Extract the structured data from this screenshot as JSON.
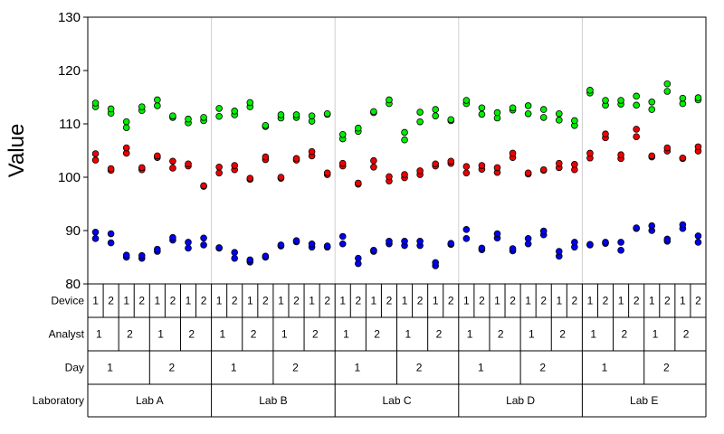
{
  "chart_data": {
    "type": "scatter",
    "title": "",
    "xlabel": "",
    "ylabel": "Value",
    "ylim": [
      80,
      130
    ],
    "yticks": [
      80,
      90,
      100,
      110,
      120,
      130
    ],
    "grid": "vertical lines between laboratories",
    "hierarchy": {
      "row_labels": [
        "Device",
        "Analyst",
        "Day",
        "Laboratory"
      ],
      "laboratories": [
        "Lab A",
        "Lab B",
        "Lab C",
        "Lab D",
        "Lab E"
      ],
      "days": [
        "1",
        "2"
      ],
      "analysts": [
        "1",
        "2"
      ],
      "devices": [
        "1",
        "2"
      ]
    },
    "colors": {
      "low": "#0000ee",
      "mid": "#ee0000",
      "high": "#00ee00"
    },
    "series": [
      {
        "level": "high",
        "groups": [
          [
            113.2,
            113.9
          ],
          [
            112.0,
            112.8
          ],
          [
            109.3,
            110.4
          ],
          [
            112.5,
            113.2
          ],
          [
            113.4,
            114.5
          ],
          [
            111.2,
            111.5
          ],
          [
            110.2,
            110.9
          ],
          [
            110.6,
            111.2
          ],
          [
            111.4,
            112.9
          ],
          [
            111.7,
            112.4
          ],
          [
            113.2,
            114.0
          ],
          [
            109.5,
            109.7
          ],
          [
            111.1,
            111.7
          ],
          [
            111.2,
            111.7
          ],
          [
            110.5,
            111.5
          ],
          [
            111.8,
            111.9
          ],
          [
            107.2,
            108.0
          ],
          [
            108.6,
            109.2
          ],
          [
            112.1,
            112.3
          ],
          [
            113.8,
            114.5
          ],
          [
            107.0,
            108.4
          ],
          [
            110.4,
            112.2
          ],
          [
            111.5,
            112.7
          ],
          [
            110.6,
            110.8
          ],
          [
            113.8,
            114.4
          ],
          [
            111.8,
            113.0
          ],
          [
            111.1,
            112.1
          ],
          [
            112.6,
            113.0
          ],
          [
            111.9,
            113.4
          ],
          [
            111.2,
            112.7
          ],
          [
            110.7,
            111.9
          ],
          [
            109.7,
            110.6
          ],
          [
            115.8,
            116.3
          ],
          [
            113.5,
            114.4
          ],
          [
            113.7,
            114.4
          ],
          [
            113.5,
            115.2
          ],
          [
            112.7,
            114.1
          ],
          [
            116.1,
            117.5
          ],
          [
            113.8,
            114.8
          ],
          [
            114.5,
            114.9
          ]
        ]
      },
      {
        "level": "mid",
        "groups": [
          [
            103.2,
            104.4
          ],
          [
            101.3,
            101.6
          ],
          [
            104.5,
            105.5
          ],
          [
            101.4,
            101.8
          ],
          [
            103.7,
            104.0
          ],
          [
            101.7,
            103.0
          ],
          [
            102.1,
            102.5
          ],
          [
            98.3,
            98.4
          ],
          [
            100.8,
            101.9
          ],
          [
            101.4,
            102.2
          ],
          [
            99.6,
            99.8
          ],
          [
            103.3,
            103.8
          ],
          [
            99.8,
            100.0
          ],
          [
            103.2,
            103.5
          ],
          [
            104.0,
            104.8
          ],
          [
            100.5,
            100.8
          ],
          [
            102.1,
            102.6
          ],
          [
            98.7,
            98.9
          ],
          [
            101.9,
            103.1
          ],
          [
            99.3,
            100.1
          ],
          [
            99.9,
            100.5
          ],
          [
            100.5,
            101.2
          ],
          [
            102.1,
            102.5
          ],
          [
            102.6,
            103.0
          ],
          [
            100.8,
            102.0
          ],
          [
            101.5,
            102.2
          ],
          [
            100.9,
            101.8
          ],
          [
            103.7,
            104.5
          ],
          [
            100.6,
            100.8
          ],
          [
            101.3,
            101.4
          ],
          [
            101.8,
            102.6
          ],
          [
            101.4,
            102.4
          ],
          [
            103.6,
            104.5
          ],
          [
            107.4,
            108.1
          ],
          [
            103.5,
            104.2
          ],
          [
            107.6,
            109.0
          ],
          [
            103.8,
            104.0
          ],
          [
            104.9,
            105.5
          ],
          [
            103.5,
            103.6
          ],
          [
            104.9,
            105.7
          ]
        ]
      },
      {
        "level": "low",
        "groups": [
          [
            88.5,
            89.7
          ],
          [
            87.7,
            89.4
          ],
          [
            85.0,
            85.4
          ],
          [
            84.8,
            85.3
          ],
          [
            86.1,
            86.5
          ],
          [
            88.2,
            88.7
          ],
          [
            86.7,
            87.8
          ],
          [
            87.3,
            88.6
          ],
          [
            86.7,
            86.8
          ],
          [
            84.8,
            85.9
          ],
          [
            84.1,
            84.5
          ],
          [
            85.0,
            85.2
          ],
          [
            87.1,
            87.3
          ],
          [
            87.9,
            88.1
          ],
          [
            86.9,
            87.5
          ],
          [
            86.9,
            87.1
          ],
          [
            87.5,
            88.9
          ],
          [
            83.8,
            84.8
          ],
          [
            86.1,
            86.3
          ],
          [
            87.5,
            88.0
          ],
          [
            87.2,
            88.0
          ],
          [
            87.2,
            88.0
          ],
          [
            83.4,
            84.0
          ],
          [
            87.4,
            87.6
          ],
          [
            88.5,
            90.2
          ],
          [
            86.4,
            86.7
          ],
          [
            88.6,
            89.4
          ],
          [
            86.2,
            86.6
          ],
          [
            87.5,
            88.5
          ],
          [
            89.2,
            89.9
          ],
          [
            85.2,
            86.1
          ],
          [
            86.9,
            87.8
          ],
          [
            87.3,
            87.4
          ],
          [
            87.6,
            87.8
          ],
          [
            86.3,
            87.8
          ],
          [
            90.4,
            90.5
          ],
          [
            90.0,
            90.9
          ],
          [
            88.0,
            88.4
          ],
          [
            90.4,
            91.1
          ],
          [
            87.8,
            89.0
          ]
        ]
      }
    ]
  }
}
